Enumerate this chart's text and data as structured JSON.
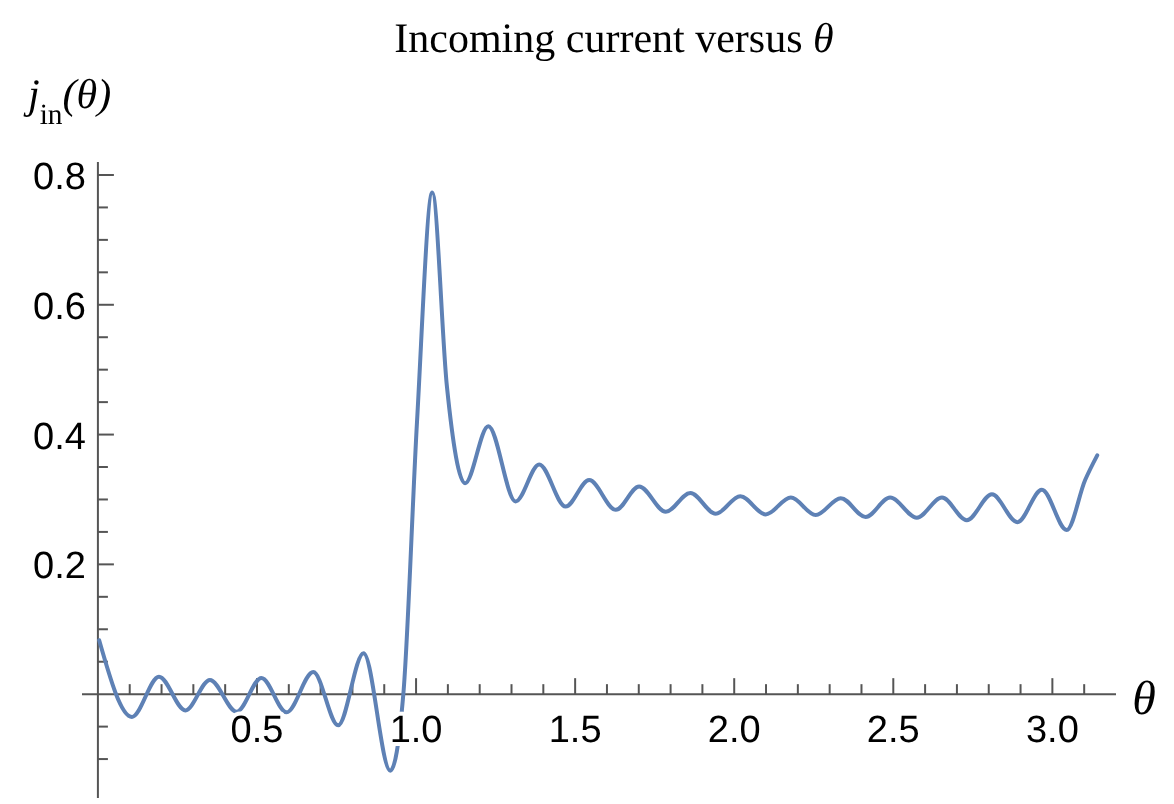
{
  "chart_data": {
    "type": "line",
    "title": "Incoming current versus θ",
    "xlabel": "θ",
    "ylabel": "j$_{in}$(θ)",
    "xlim": [
      -0.05,
      3.2
    ],
    "ylim": [
      -0.16,
      0.82
    ],
    "xticks": [
      {
        "value": 0.1,
        "label": null
      },
      {
        "value": 0.2,
        "label": null
      },
      {
        "value": 0.3,
        "label": null
      },
      {
        "value": 0.4,
        "label": null
      },
      {
        "value": 0.5,
        "label": "0.5"
      },
      {
        "value": 0.6,
        "label": null
      },
      {
        "value": 0.7,
        "label": null
      },
      {
        "value": 0.8,
        "label": null
      },
      {
        "value": 0.9,
        "label": null
      },
      {
        "value": 1,
        "label": "1.0"
      },
      {
        "value": 1.1,
        "label": null
      },
      {
        "value": 1.2,
        "label": null
      },
      {
        "value": 1.3,
        "label": null
      },
      {
        "value": 1.4,
        "label": null
      },
      {
        "value": 1.5,
        "label": "1.5"
      },
      {
        "value": 1.6,
        "label": null
      },
      {
        "value": 1.7,
        "label": null
      },
      {
        "value": 1.8,
        "label": null
      },
      {
        "value": 1.9,
        "label": null
      },
      {
        "value": 2,
        "label": "2.0"
      },
      {
        "value": 2.1,
        "label": null
      },
      {
        "value": 2.2,
        "label": null
      },
      {
        "value": 2.3,
        "label": null
      },
      {
        "value": 2.4,
        "label": null
      },
      {
        "value": 2.5,
        "label": "2.5"
      },
      {
        "value": 2.6,
        "label": null
      },
      {
        "value": 2.7,
        "label": null
      },
      {
        "value": 2.8,
        "label": null
      },
      {
        "value": 2.9,
        "label": null
      },
      {
        "value": 3,
        "label": "3.0"
      },
      {
        "value": 3.1,
        "label": null
      }
    ],
    "yticks": [
      {
        "value": -0.1,
        "label": null
      },
      {
        "value": -0.05,
        "label": null
      },
      {
        "value": 0.05,
        "label": null
      },
      {
        "value": 0.1,
        "label": null
      },
      {
        "value": 0.15,
        "label": null
      },
      0.2,
      {
        "value": 0.25,
        "label": null
      },
      {
        "value": 0.3,
        "label": null
      },
      {
        "value": 0.35,
        "label": null
      },
      0.4,
      {
        "value": 0.45,
        "label": null
      },
      {
        "value": 0.5,
        "label": null
      },
      {
        "value": 0.55,
        "label": null
      },
      0.6,
      {
        "value": 0.65,
        "label": null
      },
      {
        "value": 0.7,
        "label": null
      },
      {
        "value": 0.75,
        "label": null
      },
      0.8
    ],
    "series": [
      {
        "color": "#5e81b5",
        "x": [
          0.004,
          0.107,
          0.192,
          0.275,
          0.352,
          0.436,
          0.514,
          0.593,
          0.677,
          0.755,
          0.835,
          0.919,
          0.96,
          1.003,
          1.051,
          1.097,
          1.154,
          1.227,
          1.313,
          1.387,
          1.47,
          1.544,
          1.628,
          1.701,
          1.785,
          1.862,
          1.942,
          2.019,
          2.099,
          2.178,
          2.256,
          2.335,
          2.413,
          2.49,
          2.574,
          2.653,
          2.731,
          2.81,
          2.89,
          2.967,
          3.045,
          3.103,
          3.141
        ],
        "values": [
          0.083,
          -0.035,
          0.027,
          -0.025,
          0.022,
          -0.027,
          0.025,
          -0.028,
          0.034,
          -0.048,
          0.063,
          -0.118,
          0,
          0.42,
          0.773,
          0.474,
          0.325,
          0.413,
          0.297,
          0.354,
          0.289,
          0.33,
          0.284,
          0.32,
          0.281,
          0.31,
          0.278,
          0.305,
          0.277,
          0.303,
          0.276,
          0.302,
          0.273,
          0.303,
          0.272,
          0.303,
          0.268,
          0.308,
          0.265,
          0.315,
          0.253,
          0.33,
          0.368
        ]
      }
    ]
  }
}
